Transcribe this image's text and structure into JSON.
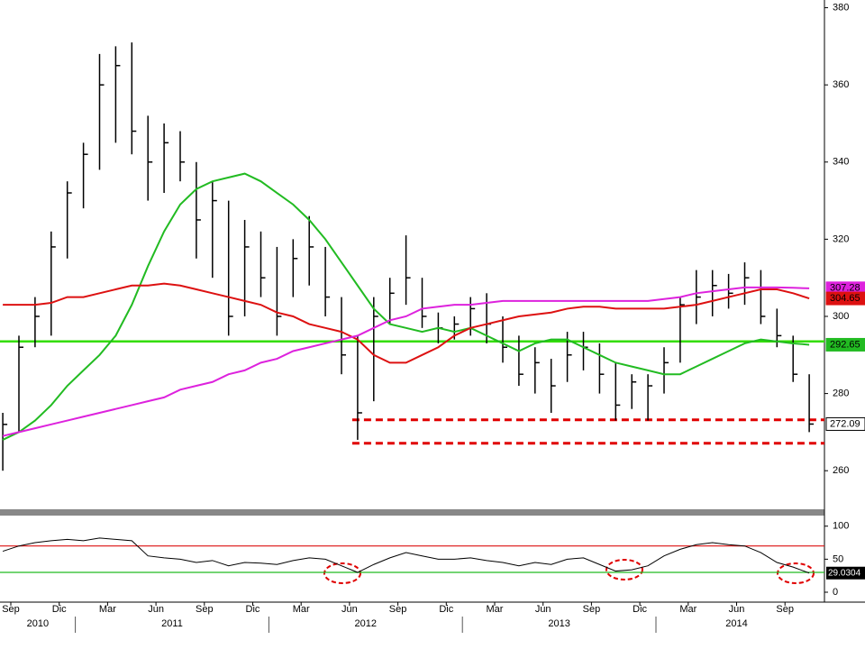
{
  "chart_data": {
    "type": "hlc",
    "x": [
      "2010-08",
      "2010-09",
      "2010-10",
      "2010-11",
      "2010-12",
      "2011-01",
      "2011-02",
      "2011-03",
      "2011-04",
      "2011-05",
      "2011-06",
      "2011-07",
      "2011-08",
      "2011-09",
      "2011-10",
      "2011-11",
      "2011-12",
      "2012-01",
      "2012-02",
      "2012-03",
      "2012-04",
      "2012-05",
      "2012-06",
      "2012-07",
      "2012-08",
      "2012-09",
      "2012-10",
      "2012-11",
      "2012-12",
      "2013-01",
      "2013-02",
      "2013-03",
      "2013-04",
      "2013-05",
      "2013-06",
      "2013-07",
      "2013-08",
      "2013-09",
      "2013-10",
      "2013-11",
      "2013-12",
      "2014-01",
      "2014-02",
      "2014-03",
      "2014-04",
      "2014-05",
      "2014-06",
      "2014-07",
      "2014-08",
      "2014-09",
      "2014-10"
    ],
    "high": [
      275,
      295,
      305,
      322,
      335,
      345,
      368,
      370,
      371,
      352,
      350,
      348,
      340,
      335,
      330,
      325,
      322,
      318,
      320,
      326,
      318,
      305,
      295,
      305,
      310,
      321,
      310,
      301,
      300,
      305,
      306,
      300,
      295,
      292,
      289,
      296,
      296,
      293,
      288,
      285,
      285,
      292,
      305,
      312,
      312,
      311,
      314,
      312,
      302,
      295,
      285
    ],
    "low": [
      260,
      270,
      292,
      295,
      315,
      328,
      338,
      345,
      342,
      330,
      332,
      335,
      315,
      310,
      295,
      300,
      305,
      295,
      305,
      308,
      300,
      285,
      268,
      278,
      298,
      303,
      297,
      293,
      294,
      295,
      293,
      288,
      282,
      280,
      275,
      283,
      286,
      280,
      273,
      276,
      273,
      280,
      288,
      298,
      300,
      302,
      303,
      298,
      292,
      283,
      270
    ],
    "close": [
      272,
      292,
      300,
      318,
      332,
      342,
      360,
      365,
      348,
      340,
      345,
      340,
      325,
      330,
      300,
      318,
      310,
      300,
      315,
      318,
      305,
      290,
      275,
      300,
      306,
      310,
      300,
      297,
      298,
      302,
      298,
      292,
      285,
      288,
      282,
      290,
      292,
      285,
      277,
      283,
      282,
      288,
      303,
      305,
      308,
      306,
      310,
      300,
      295,
      285,
      272.09
    ],
    "bar_color": "#000000",
    "series": [
      {
        "color": "#22bb22",
        "values": [
          268,
          270,
          273,
          277,
          282,
          286,
          290,
          295,
          303,
          313,
          322,
          329,
          333,
          335,
          336,
          337,
          335,
          332,
          329,
          325,
          320,
          314,
          308,
          302,
          298,
          297,
          296,
          297,
          296,
          297,
          295,
          293,
          291,
          293,
          294,
          294,
          292,
          290,
          288,
          287,
          286,
          285,
          285,
          287,
          289,
          291,
          293,
          294,
          293.5,
          293,
          292.65
        ]
      },
      {
        "color": "#dd1111",
        "values": [
          303,
          303,
          303,
          303.5,
          305,
          305,
          306,
          307,
          308,
          308,
          308.5,
          308,
          307,
          306,
          305,
          304,
          303,
          301,
          300,
          298,
          297,
          296,
          294,
          290,
          288,
          288,
          290,
          292,
          295,
          297,
          298,
          299,
          300,
          300.5,
          301,
          302,
          302.5,
          302.5,
          302,
          302,
          302,
          302,
          302.5,
          303,
          304,
          305,
          306,
          307,
          307,
          306,
          304.65
        ]
      },
      {
        "color": "#dd22dd",
        "values": [
          269,
          270,
          271,
          272,
          273,
          274,
          275,
          276,
          277,
          278,
          279,
          281,
          282,
          283,
          285,
          286,
          288,
          289,
          291,
          292,
          293,
          294,
          295,
          297,
          299,
          300,
          302,
          302.5,
          303,
          303,
          303.5,
          304,
          304,
          304,
          304,
          304,
          304,
          304,
          304,
          304,
          304,
          304.5,
          305,
          306,
          306.5,
          307,
          307.5,
          307.5,
          307.5,
          307.4,
          307.28
        ]
      }
    ],
    "price_tags": [
      {
        "value": 307.28,
        "color": "#dd22dd"
      },
      {
        "value": 304.65,
        "color": "#dd1111"
      },
      {
        "value": 292.65,
        "color": "#22bb22"
      },
      {
        "value": 272.09,
        "color": "#000000"
      }
    ],
    "levels": [
      {
        "value": 293.5,
        "color": "#33dd00",
        "dashed": false
      },
      {
        "value": 273.2,
        "color": "#e00000",
        "dashed": true,
        "from": "2012-06"
      },
      {
        "value": 267.1,
        "color": "#e00000",
        "dashed": true,
        "from": "2012-06"
      }
    ],
    "ylim": [
      250,
      382
    ],
    "yticks": [
      260,
      280,
      300,
      320,
      340,
      360,
      380
    ],
    "xticks": [
      {
        "value": "2010-09",
        "label": "Sep"
      },
      {
        "value": "2010-12",
        "label": "Dic"
      },
      {
        "value": "2011-03",
        "label": "Mar"
      },
      {
        "value": "2011-06",
        "label": "Jun"
      },
      {
        "value": "2011-09",
        "label": "Sep"
      },
      {
        "value": "2011-12",
        "label": "Dic"
      },
      {
        "value": "2012-03",
        "label": "Mar"
      },
      {
        "value": "2012-06",
        "label": "Jun"
      },
      {
        "value": "2012-09",
        "label": "Sep"
      },
      {
        "value": "2012-12",
        "label": "Dic"
      },
      {
        "value": "2013-03",
        "label": "Mar"
      },
      {
        "value": "2013-06",
        "label": "Jun"
      },
      {
        "value": "2013-09",
        "label": "Sep"
      },
      {
        "value": "2013-12",
        "label": "Dic"
      },
      {
        "value": "2014-03",
        "label": "Mar"
      },
      {
        "value": "2014-06",
        "label": "Jun"
      },
      {
        "value": "2014-09",
        "label": "Sep"
      }
    ],
    "years": [
      2010,
      2011,
      2012,
      2013,
      2014
    ],
    "rsi": {
      "color": "#000000",
      "values": [
        62,
        70,
        75,
        78,
        80,
        78,
        82,
        80,
        78,
        55,
        52,
        50,
        45,
        48,
        40,
        45,
        44,
        42,
        48,
        52,
        50,
        40,
        30,
        42,
        52,
        60,
        55,
        50,
        50,
        52,
        48,
        45,
        40,
        45,
        42,
        50,
        52,
        42,
        32,
        34,
        40,
        55,
        65,
        72,
        75,
        72,
        70,
        60,
        45,
        38,
        29.0304
      ],
      "last_label": 29.0304,
      "upper": 70,
      "upper_color": "#dd1111",
      "lower": 30,
      "lower_color": "#22bb22",
      "ylim": [
        -15,
        116
      ],
      "yticks": [
        0,
        50,
        100
      ]
    }
  }
}
